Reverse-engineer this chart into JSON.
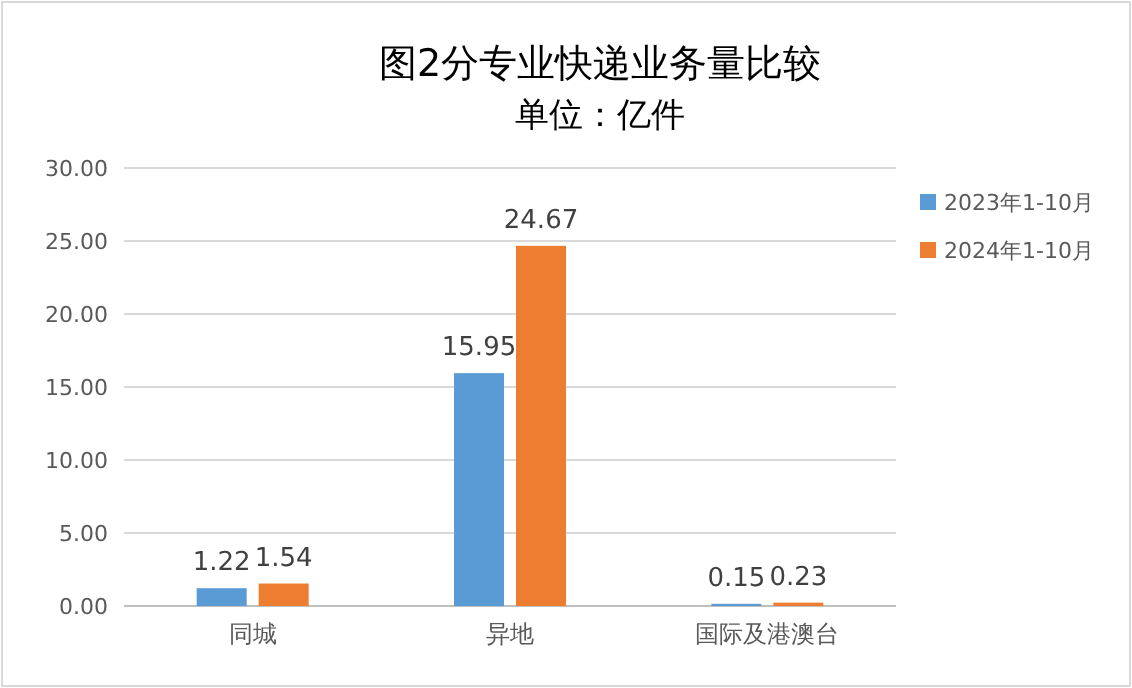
{
  "chart_data": {
    "type": "bar",
    "title": "图2分专业快递业务量比较",
    "subtitle": "单位：亿件",
    "categories": [
      "同城",
      "异地",
      "国际及港澳台"
    ],
    "series": [
      {
        "name": "2023年1-10月",
        "color": "#5b9bd5",
        "values": [
          1.22,
          15.95,
          0.15
        ]
      },
      {
        "name": "2024年1-10月",
        "color": "#ed7d31",
        "values": [
          1.54,
          24.67,
          0.23
        ]
      }
    ],
    "ylim": [
      0,
      30
    ],
    "yticks": [
      {
        "value": 0,
        "label": "0.00"
      },
      {
        "value": 5,
        "label": "5.00"
      },
      {
        "value": 10,
        "label": "10.00"
      },
      {
        "value": 15,
        "label": "15.00"
      },
      {
        "value": 20,
        "label": "20.00"
      },
      {
        "value": 25,
        "label": "25.00"
      },
      {
        "value": 30,
        "label": "30.00"
      }
    ],
    "grid": "y",
    "legend": "right",
    "data_labels": true
  }
}
